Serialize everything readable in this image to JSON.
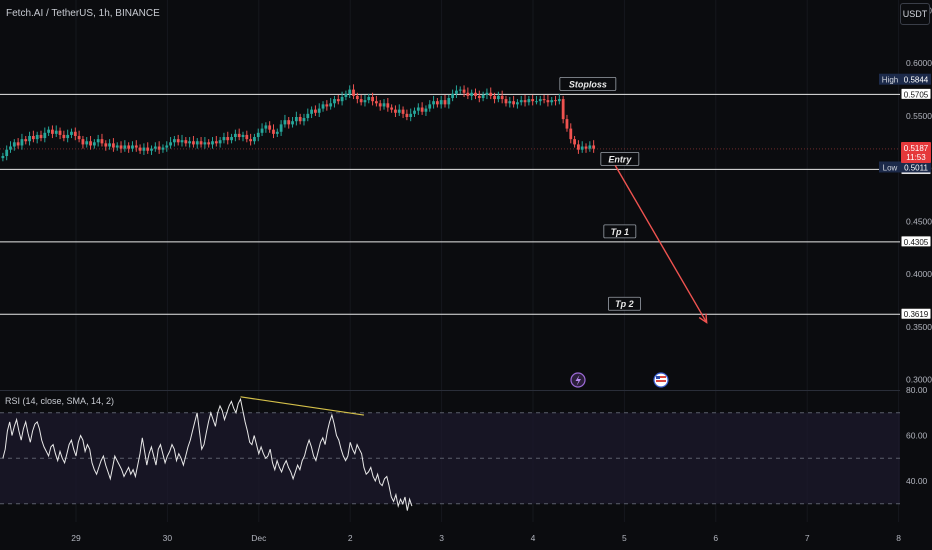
{
  "header": {
    "symbol": "Fetch.AI / TetherUS, 1h, BINANCE",
    "currency": "USDT"
  },
  "rsi_panel": {
    "title": "RSI (14, close, SMA, 14, 2)",
    "levels": [
      "80.00",
      "60.00",
      "40.00"
    ]
  },
  "price_labels": [
    "0.6500",
    "0.6000",
    "0.5500",
    "0.5000",
    "0.4500",
    "0.4000",
    "0.3500",
    "0.3000"
  ],
  "x_labels": [
    "29",
    "30",
    "Dec",
    "2",
    "3",
    "4",
    "5",
    "6",
    "7",
    "8"
  ],
  "tags": {
    "high_label": "High",
    "high_value": "0.5844",
    "low_label": "Low",
    "low_value": "0.5011",
    "current_price": "0.5187",
    "countdown": "11:53"
  },
  "colors": {
    "up": "#26a69a",
    "down": "#ef5350",
    "arrow": "#ef5350",
    "rsi_line": "#e8e8e8",
    "divergence": "#d4c04a"
  },
  "chart_data": [
    {
      "type": "candlestick",
      "yrange": [
        0.29,
        0.66
      ],
      "xrange": [
        -0.8,
        9.0
      ],
      "levels": [
        {
          "name": "Stoploss",
          "value": 0.5705,
          "label_x": 5.6
        },
        {
          "name": "Entry",
          "value": 0.4993,
          "label_x": 5.95
        },
        {
          "name": "Tp 1",
          "value": 0.4305,
          "label_x": 5.95
        },
        {
          "name": "Tp 2",
          "value": 0.3619,
          "label_x": 6.0
        }
      ],
      "arrow": {
        "from": [
          5.9,
          0.503
        ],
        "to": [
          6.9,
          0.354
        ]
      },
      "series": [
        {
          "name": "price",
          "start": -0.8,
          "step": 0.0417,
          "close": [
            0.512,
            0.518,
            0.521,
            0.525,
            0.522,
            0.528,
            0.526,
            0.531,
            0.528,
            0.532,
            0.529,
            0.534,
            0.537,
            0.533,
            0.536,
            0.532,
            0.529,
            0.532,
            0.535,
            0.531,
            0.528,
            0.523,
            0.526,
            0.522,
            0.525,
            0.528,
            0.524,
            0.521,
            0.524,
            0.52,
            0.522,
            0.519,
            0.522,
            0.519,
            0.522,
            0.52,
            0.517,
            0.52,
            0.517,
            0.519,
            0.521,
            0.518,
            0.52,
            0.522,
            0.525,
            0.528,
            0.525,
            0.527,
            0.524,
            0.526,
            0.523,
            0.526,
            0.523,
            0.525,
            0.523,
            0.526,
            0.524,
            0.527,
            0.53,
            0.527,
            0.53,
            0.533,
            0.53,
            0.532,
            0.528,
            0.526,
            0.53,
            0.534,
            0.538,
            0.541,
            0.537,
            0.533,
            0.535,
            0.542,
            0.546,
            0.542,
            0.545,
            0.549,
            0.545,
            0.548,
            0.552,
            0.556,
            0.553,
            0.557,
            0.561,
            0.559,
            0.562,
            0.566,
            0.564,
            0.568,
            0.571,
            0.575,
            0.569,
            0.566,
            0.563,
            0.565,
            0.568,
            0.564,
            0.562,
            0.559,
            0.562,
            0.558,
            0.556,
            0.553,
            0.556,
            0.552,
            0.549,
            0.552,
            0.555,
            0.558,
            0.554,
            0.557,
            0.561,
            0.564,
            0.561,
            0.565,
            0.561,
            0.567,
            0.571,
            0.574,
            0.575,
            0.572,
            0.569,
            0.572,
            0.569,
            0.567,
            0.57,
            0.572,
            0.569,
            0.566,
            0.569,
            0.566,
            0.562,
            0.564,
            0.561,
            0.563,
            0.565,
            0.563,
            0.566,
            0.564,
            0.564,
            0.566,
            0.565,
            0.563,
            0.565,
            0.564,
            0.566,
            0.547,
            0.538,
            0.528,
            0.523,
            0.518,
            0.521,
            0.519,
            0.522,
            0.519
          ]
        }
      ]
    },
    {
      "type": "line",
      "title": "RSI (14, close, SMA, 14, 2)",
      "ylim": [
        22,
        80
      ],
      "bands": [
        70,
        50,
        30
      ],
      "divergence": {
        "from": [
          1.8,
          77
        ],
        "to": [
          3.15,
          69
        ]
      },
      "series": [
        {
          "name": "RSI",
          "start": -0.8,
          "step": 0.025,
          "values": [
            50,
            54,
            62,
            66,
            60,
            64,
            67,
            62,
            58,
            63,
            66,
            61,
            57,
            62,
            65,
            66,
            63,
            58,
            55,
            53,
            51,
            55,
            56,
            52,
            49,
            53,
            50,
            48,
            52,
            56,
            58,
            54,
            51,
            57,
            60,
            58,
            53,
            56,
            54,
            48,
            45,
            43,
            46,
            49,
            51,
            47,
            44,
            41,
            46,
            51,
            49,
            47,
            45,
            42,
            44,
            46,
            43,
            45,
            42,
            47,
            52,
            59,
            53,
            47,
            52,
            55,
            51,
            47,
            54,
            56,
            52,
            48,
            51,
            53,
            56,
            54,
            49,
            52,
            50,
            47,
            51,
            55,
            58,
            62,
            66,
            70,
            62,
            54,
            56,
            61,
            66,
            70,
            67,
            64,
            70,
            73,
            71,
            67,
            70,
            73,
            75,
            72,
            70,
            74,
            76,
            71,
            66,
            62,
            57,
            56,
            60,
            56,
            52,
            55,
            52,
            50,
            51,
            54,
            48,
            45,
            49,
            46,
            44,
            47,
            49,
            46,
            44,
            41,
            44,
            47,
            45,
            49,
            51,
            55,
            58,
            55,
            51,
            49,
            53,
            57,
            59,
            56,
            62,
            66,
            69,
            65,
            60,
            58,
            54,
            51,
            49,
            51,
            57,
            54,
            52,
            56,
            54,
            52,
            46,
            43,
            44,
            46,
            42,
            40,
            43,
            39,
            38,
            41,
            42,
            38,
            33,
            31,
            34,
            29,
            32,
            30,
            33,
            27,
            32,
            29
          ]
        }
      ]
    }
  ]
}
